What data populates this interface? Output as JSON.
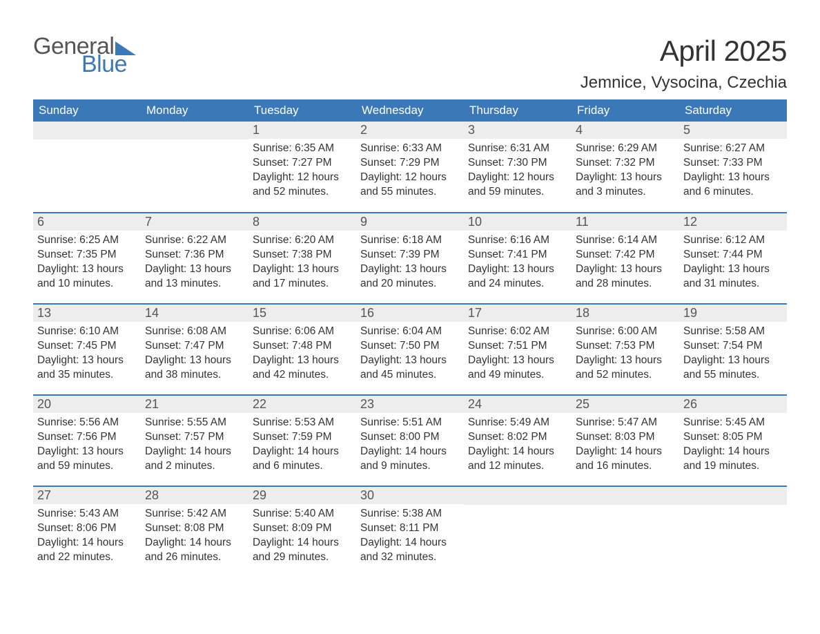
{
  "logo": {
    "general": "General",
    "blue": "Blue",
    "tri_color": "#3b78b8"
  },
  "title": "April 2025",
  "location": "Jemnice, Vysocina, Czechia",
  "colors": {
    "header_bg": "#3b78b8",
    "header_text": "#ffffff",
    "daynum_bg": "#ededed",
    "daynum_text": "#555555",
    "body_text": "#333333",
    "row_border": "#3b78b8",
    "page_bg": "#ffffff"
  },
  "typography": {
    "font_family": "Arial, Helvetica, sans-serif",
    "title_fontsize": 42,
    "location_fontsize": 24,
    "header_fontsize": 17,
    "daynum_fontsize": 18,
    "body_fontsize": 15.5
  },
  "columns": [
    "Sunday",
    "Monday",
    "Tuesday",
    "Wednesday",
    "Thursday",
    "Friday",
    "Saturday"
  ],
  "weeks": [
    [
      {
        "day": "",
        "sunrise": "",
        "sunset": "",
        "daylight": ""
      },
      {
        "day": "",
        "sunrise": "",
        "sunset": "",
        "daylight": ""
      },
      {
        "day": "1",
        "sunrise": "Sunrise: 6:35 AM",
        "sunset": "Sunset: 7:27 PM",
        "daylight": "Daylight: 12 hours and 52 minutes."
      },
      {
        "day": "2",
        "sunrise": "Sunrise: 6:33 AM",
        "sunset": "Sunset: 7:29 PM",
        "daylight": "Daylight: 12 hours and 55 minutes."
      },
      {
        "day": "3",
        "sunrise": "Sunrise: 6:31 AM",
        "sunset": "Sunset: 7:30 PM",
        "daylight": "Daylight: 12 hours and 59 minutes."
      },
      {
        "day": "4",
        "sunrise": "Sunrise: 6:29 AM",
        "sunset": "Sunset: 7:32 PM",
        "daylight": "Daylight: 13 hours and 3 minutes."
      },
      {
        "day": "5",
        "sunrise": "Sunrise: 6:27 AM",
        "sunset": "Sunset: 7:33 PM",
        "daylight": "Daylight: 13 hours and 6 minutes."
      }
    ],
    [
      {
        "day": "6",
        "sunrise": "Sunrise: 6:25 AM",
        "sunset": "Sunset: 7:35 PM",
        "daylight": "Daylight: 13 hours and 10 minutes."
      },
      {
        "day": "7",
        "sunrise": "Sunrise: 6:22 AM",
        "sunset": "Sunset: 7:36 PM",
        "daylight": "Daylight: 13 hours and 13 minutes."
      },
      {
        "day": "8",
        "sunrise": "Sunrise: 6:20 AM",
        "sunset": "Sunset: 7:38 PM",
        "daylight": "Daylight: 13 hours and 17 minutes."
      },
      {
        "day": "9",
        "sunrise": "Sunrise: 6:18 AM",
        "sunset": "Sunset: 7:39 PM",
        "daylight": "Daylight: 13 hours and 20 minutes."
      },
      {
        "day": "10",
        "sunrise": "Sunrise: 6:16 AM",
        "sunset": "Sunset: 7:41 PM",
        "daylight": "Daylight: 13 hours and 24 minutes."
      },
      {
        "day": "11",
        "sunrise": "Sunrise: 6:14 AM",
        "sunset": "Sunset: 7:42 PM",
        "daylight": "Daylight: 13 hours and 28 minutes."
      },
      {
        "day": "12",
        "sunrise": "Sunrise: 6:12 AM",
        "sunset": "Sunset: 7:44 PM",
        "daylight": "Daylight: 13 hours and 31 minutes."
      }
    ],
    [
      {
        "day": "13",
        "sunrise": "Sunrise: 6:10 AM",
        "sunset": "Sunset: 7:45 PM",
        "daylight": "Daylight: 13 hours and 35 minutes."
      },
      {
        "day": "14",
        "sunrise": "Sunrise: 6:08 AM",
        "sunset": "Sunset: 7:47 PM",
        "daylight": "Daylight: 13 hours and 38 minutes."
      },
      {
        "day": "15",
        "sunrise": "Sunrise: 6:06 AM",
        "sunset": "Sunset: 7:48 PM",
        "daylight": "Daylight: 13 hours and 42 minutes."
      },
      {
        "day": "16",
        "sunrise": "Sunrise: 6:04 AM",
        "sunset": "Sunset: 7:50 PM",
        "daylight": "Daylight: 13 hours and 45 minutes."
      },
      {
        "day": "17",
        "sunrise": "Sunrise: 6:02 AM",
        "sunset": "Sunset: 7:51 PM",
        "daylight": "Daylight: 13 hours and 49 minutes."
      },
      {
        "day": "18",
        "sunrise": "Sunrise: 6:00 AM",
        "sunset": "Sunset: 7:53 PM",
        "daylight": "Daylight: 13 hours and 52 minutes."
      },
      {
        "day": "19",
        "sunrise": "Sunrise: 5:58 AM",
        "sunset": "Sunset: 7:54 PM",
        "daylight": "Daylight: 13 hours and 55 minutes."
      }
    ],
    [
      {
        "day": "20",
        "sunrise": "Sunrise: 5:56 AM",
        "sunset": "Sunset: 7:56 PM",
        "daylight": "Daylight: 13 hours and 59 minutes."
      },
      {
        "day": "21",
        "sunrise": "Sunrise: 5:55 AM",
        "sunset": "Sunset: 7:57 PM",
        "daylight": "Daylight: 14 hours and 2 minutes."
      },
      {
        "day": "22",
        "sunrise": "Sunrise: 5:53 AM",
        "sunset": "Sunset: 7:59 PM",
        "daylight": "Daylight: 14 hours and 6 minutes."
      },
      {
        "day": "23",
        "sunrise": "Sunrise: 5:51 AM",
        "sunset": "Sunset: 8:00 PM",
        "daylight": "Daylight: 14 hours and 9 minutes."
      },
      {
        "day": "24",
        "sunrise": "Sunrise: 5:49 AM",
        "sunset": "Sunset: 8:02 PM",
        "daylight": "Daylight: 14 hours and 12 minutes."
      },
      {
        "day": "25",
        "sunrise": "Sunrise: 5:47 AM",
        "sunset": "Sunset: 8:03 PM",
        "daylight": "Daylight: 14 hours and 16 minutes."
      },
      {
        "day": "26",
        "sunrise": "Sunrise: 5:45 AM",
        "sunset": "Sunset: 8:05 PM",
        "daylight": "Daylight: 14 hours and 19 minutes."
      }
    ],
    [
      {
        "day": "27",
        "sunrise": "Sunrise: 5:43 AM",
        "sunset": "Sunset: 8:06 PM",
        "daylight": "Daylight: 14 hours and 22 minutes."
      },
      {
        "day": "28",
        "sunrise": "Sunrise: 5:42 AM",
        "sunset": "Sunset: 8:08 PM",
        "daylight": "Daylight: 14 hours and 26 minutes."
      },
      {
        "day": "29",
        "sunrise": "Sunrise: 5:40 AM",
        "sunset": "Sunset: 8:09 PM",
        "daylight": "Daylight: 14 hours and 29 minutes."
      },
      {
        "day": "30",
        "sunrise": "Sunrise: 5:38 AM",
        "sunset": "Sunset: 8:11 PM",
        "daylight": "Daylight: 14 hours and 32 minutes."
      },
      {
        "day": "",
        "sunrise": "",
        "sunset": "",
        "daylight": ""
      },
      {
        "day": "",
        "sunrise": "",
        "sunset": "",
        "daylight": ""
      },
      {
        "day": "",
        "sunrise": "",
        "sunset": "",
        "daylight": ""
      }
    ]
  ]
}
